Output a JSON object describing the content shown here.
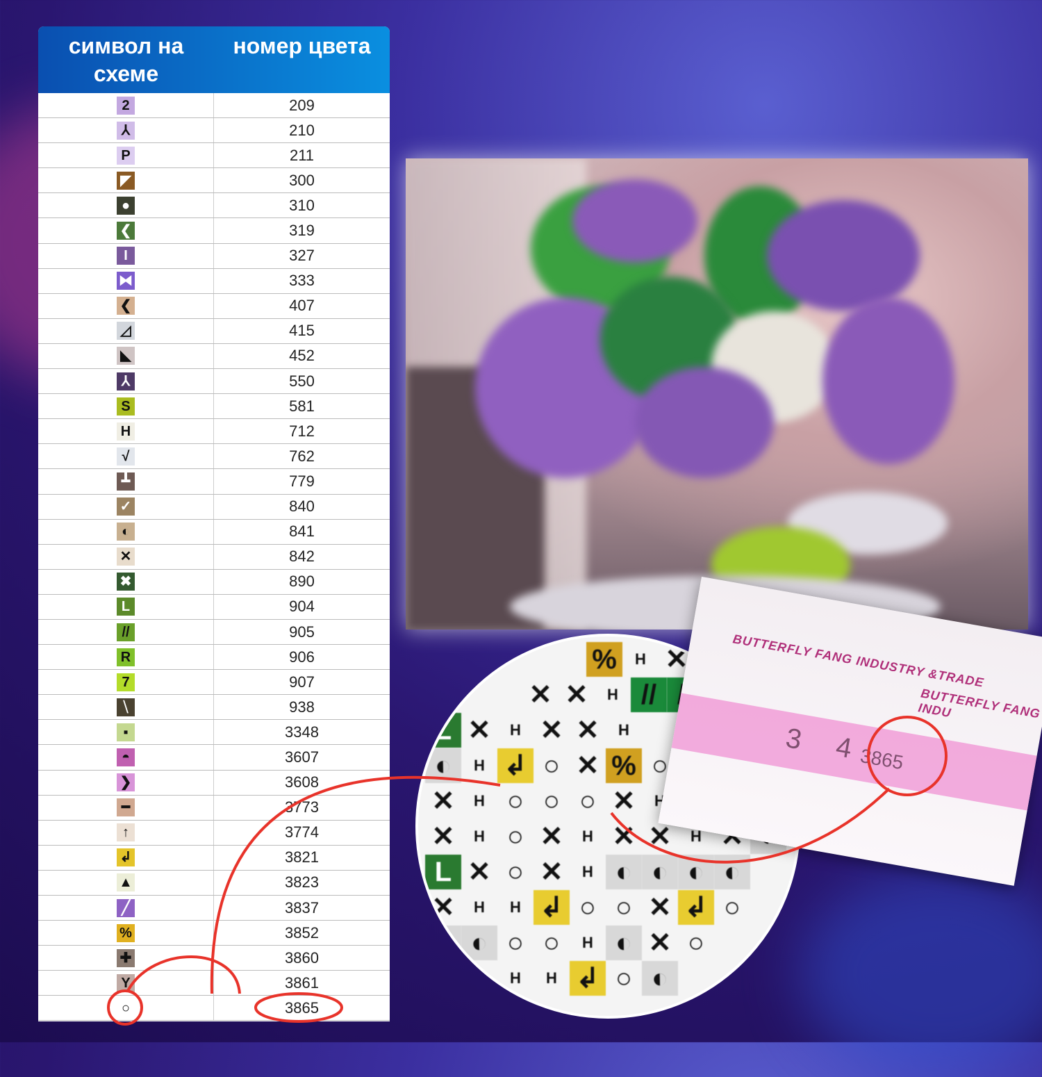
{
  "table": {
    "header": {
      "symbol": "символ на схеме",
      "number": "номер цвета"
    },
    "rows": [
      {
        "symbol": "2",
        "number": "209",
        "bg": "#c3a8e0",
        "fg": "#111"
      },
      {
        "symbol": "⅄",
        "number": "210",
        "bg": "#d0bce8",
        "fg": "#111"
      },
      {
        "symbol": "P",
        "number": "211",
        "bg": "#dccdf0",
        "fg": "#111"
      },
      {
        "symbol": "◤",
        "number": "300",
        "bg": "#8a5a24",
        "fg": "#fff"
      },
      {
        "symbol": "●",
        "number": "310",
        "bg": "#3c4030",
        "fg": "#fff"
      },
      {
        "symbol": "❮",
        "number": "319",
        "bg": "#4c7a3a",
        "fg": "#fff"
      },
      {
        "symbol": "I",
        "number": "327",
        "bg": "#7a5a9c",
        "fg": "#fff"
      },
      {
        "symbol": "⧓",
        "number": "333",
        "bg": "#7c5ccc",
        "fg": "#fff"
      },
      {
        "symbol": "❮",
        "number": "407",
        "bg": "#d4b090",
        "fg": "#111"
      },
      {
        "symbol": "◿",
        "number": "415",
        "bg": "#d2d6dc",
        "fg": "#111"
      },
      {
        "symbol": "◣",
        "number": "452",
        "bg": "#cfc4c4",
        "fg": "#111"
      },
      {
        "symbol": "⅄",
        "number": "550",
        "bg": "#4e3a66",
        "fg": "#fff"
      },
      {
        "symbol": "S",
        "number": "581",
        "bg": "#aabc20",
        "fg": "#111"
      },
      {
        "symbol": "H",
        "number": "712",
        "bg": "#f0eee4",
        "fg": "#111"
      },
      {
        "symbol": "√",
        "number": "762",
        "bg": "#e2e6ec",
        "fg": "#111"
      },
      {
        "symbol": "┻",
        "number": "779",
        "bg": "#6e5a54",
        "fg": "#fff"
      },
      {
        "symbol": "✓",
        "number": "840",
        "bg": "#9c8462",
        "fg": "#fff"
      },
      {
        "symbol": "◐",
        "number": "841",
        "bg": "#c8b090",
        "fg": "#111"
      },
      {
        "symbol": "✕",
        "number": "842",
        "bg": "#e8dccc",
        "fg": "#111"
      },
      {
        "symbol": "✖",
        "number": "890",
        "bg": "#345a30",
        "fg": "#fff"
      },
      {
        "symbol": "L",
        "number": "904",
        "bg": "#5c8a2a",
        "fg": "#fff"
      },
      {
        "symbol": "//",
        "number": "905",
        "bg": "#6aa02a",
        "fg": "#111"
      },
      {
        "symbol": "R",
        "number": "906",
        "bg": "#80c02a",
        "fg": "#111"
      },
      {
        "symbol": "7",
        "number": "907",
        "bg": "#b4dc2a",
        "fg": "#111"
      },
      {
        "symbol": "⧹",
        "number": "938",
        "bg": "#4a4230",
        "fg": "#fff"
      },
      {
        "symbol": "▪",
        "number": "3348",
        "bg": "#c4d890",
        "fg": "#111"
      },
      {
        "symbol": "◓",
        "number": "3607",
        "bg": "#c060b0",
        "fg": "#111"
      },
      {
        "symbol": "❯",
        "number": "3608",
        "bg": "#d894d8",
        "fg": "#111"
      },
      {
        "symbol": "━",
        "number": "3773",
        "bg": "#d0a890",
        "fg": "#111"
      },
      {
        "symbol": "↑",
        "number": "3774",
        "bg": "#ece0d4",
        "fg": "#111"
      },
      {
        "symbol": "↲",
        "number": "3821",
        "bg": "#e4c42a",
        "fg": "#111"
      },
      {
        "symbol": "▲",
        "number": "3823",
        "bg": "#eceed8",
        "fg": "#111"
      },
      {
        "symbol": "╱",
        "number": "3837",
        "bg": "#8e62c4",
        "fg": "#fff"
      },
      {
        "symbol": "%",
        "number": "3852",
        "bg": "#e0b020",
        "fg": "#111"
      },
      {
        "symbol": "✚",
        "number": "3860",
        "bg": "#8a7a70",
        "fg": "#111"
      },
      {
        "symbol": "Y",
        "number": "3861",
        "bg": "#c0aaa4",
        "fg": "#111"
      },
      {
        "symbol": "○",
        "number": "3865",
        "bg": "#ffffff",
        "fg": "#111"
      }
    ]
  },
  "magnifier": {
    "grid": [
      [
        "",
        "%",
        "H",
        "✕",
        "○"
      ],
      [
        "✕",
        "✕",
        "H",
        "//",
        "//",
        "○"
      ],
      [
        "L",
        "✕",
        "H",
        "✕",
        "✕",
        "H"
      ],
      [
        "◐",
        "H",
        "↲",
        "○",
        "✕",
        "%",
        "○"
      ],
      [
        "✕",
        "H",
        "○",
        "○",
        "○",
        "✕",
        "H"
      ],
      [
        "✕",
        "H",
        "○",
        "✕",
        "H",
        "✕",
        "✕",
        "H",
        "✕",
        "◐"
      ],
      [
        "L",
        "✕",
        "○",
        "✕",
        "H",
        "◐",
        "◐",
        "◐",
        "◐"
      ],
      [
        "✕",
        "H",
        "H",
        "↲",
        "○",
        "○",
        "✕",
        "↲",
        "○"
      ],
      [
        "◐",
        "◐",
        "○",
        "○",
        "H",
        "◐",
        "✕",
        "○"
      ],
      [
        "○",
        "○",
        "H",
        "H",
        "↲",
        "○",
        "◐"
      ]
    ]
  },
  "packet": {
    "brand1": "BUTTERFLY FANG INDUSTRY &TRADE",
    "brand2": "BUTTERFLY FANG INDU",
    "code_prefix": "3 4",
    "code": "3865"
  },
  "colors": {
    "annotation": "#e8332a",
    "header": "#0a6fd0"
  }
}
